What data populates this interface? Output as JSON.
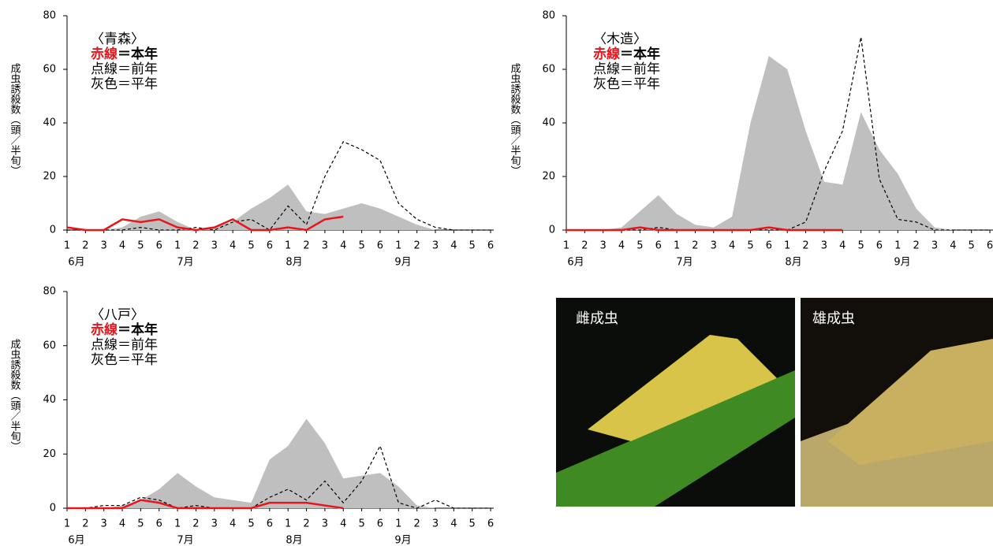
{
  "chart_data": [
    {
      "type": "line",
      "title": "〈青森〉",
      "y_label": "成虫誘殺数（頭／半旬）",
      "categories": [
        "1",
        "2",
        "3",
        "4",
        "5",
        "6",
        "1",
        "2",
        "3",
        "4",
        "5",
        "6",
        "1",
        "2",
        "3",
        "4",
        "5",
        "6",
        "1",
        "2",
        "3",
        "4",
        "5",
        "6"
      ],
      "months": [
        "6月",
        "7月",
        "8月",
        "9月"
      ],
      "ylim": [
        0,
        80
      ],
      "yticks": [
        0,
        20,
        40,
        60,
        80
      ],
      "series": [
        {
          "label": "赤線",
          "name": "＝本年",
          "style": "solid",
          "color": "#e8161b",
          "values": [
            1,
            0,
            0,
            4,
            3,
            4,
            1,
            0,
            1,
            4,
            0,
            0,
            1,
            0,
            4,
            5,
            null,
            null,
            null,
            null,
            null,
            null,
            null,
            null
          ]
        },
        {
          "name": "点線＝前年",
          "style": "dashed",
          "color": "#000000",
          "values": [
            0,
            0,
            0,
            0,
            1,
            0,
            0,
            1,
            0,
            3,
            4,
            0,
            9,
            2,
            20,
            33,
            30,
            26,
            10,
            4,
            1,
            0,
            0,
            0
          ]
        },
        {
          "name": "灰色＝平年",
          "style": "area",
          "color": "#bfbfbf",
          "values": [
            0,
            0,
            0,
            1,
            5,
            7,
            3,
            0,
            1,
            3,
            8,
            12,
            17,
            7,
            6,
            8,
            10,
            8,
            5,
            2,
            0,
            0,
            0,
            0
          ]
        }
      ]
    },
    {
      "type": "line",
      "title": "〈木造〉",
      "y_label": "成虫誘殺数（頭／半旬）",
      "categories": [
        "1",
        "2",
        "3",
        "4",
        "5",
        "6",
        "1",
        "2",
        "3",
        "4",
        "5",
        "6",
        "1",
        "2",
        "3",
        "4",
        "5",
        "6",
        "1",
        "2",
        "3",
        "4",
        "5",
        "6"
      ],
      "months": [
        "6月",
        "7月",
        "8月",
        "9月"
      ],
      "ylim": [
        0,
        80
      ],
      "yticks": [
        0,
        20,
        40,
        60,
        80
      ],
      "series": [
        {
          "label": "赤線",
          "name": "＝本年",
          "style": "solid",
          "color": "#e8161b",
          "values": [
            0,
            0,
            0,
            0,
            1,
            0,
            0,
            0,
            0,
            0,
            0,
            1,
            0,
            0,
            0,
            0,
            null,
            null,
            null,
            null,
            null,
            null,
            null,
            null
          ]
        },
        {
          "name": "点線＝前年",
          "style": "dashed",
          "color": "#000000",
          "values": [
            0,
            0,
            0,
            0,
            0,
            1,
            0,
            0,
            0,
            0,
            0,
            0,
            0,
            3,
            22,
            37,
            72,
            19,
            4,
            3,
            0,
            0,
            0,
            0
          ]
        },
        {
          "name": "灰色＝平年",
          "style": "area",
          "color": "#bfbfbf",
          "values": [
            0,
            0,
            0,
            1,
            7,
            13,
            6,
            2,
            1,
            5,
            40,
            65,
            60,
            37,
            18,
            17,
            44,
            30,
            21,
            8,
            1,
            0,
            0,
            0
          ]
        }
      ]
    },
    {
      "type": "line",
      "title": "〈八戸〉",
      "y_label": "成虫誘殺数（頭／半旬）",
      "categories": [
        "1",
        "2",
        "3",
        "4",
        "5",
        "6",
        "1",
        "2",
        "3",
        "4",
        "5",
        "6",
        "1",
        "2",
        "3",
        "4",
        "5",
        "6",
        "1",
        "2",
        "3",
        "4",
        "5",
        "6"
      ],
      "months": [
        "6月",
        "7月",
        "8月",
        "9月"
      ],
      "ylim": [
        0,
        80
      ],
      "yticks": [
        0,
        20,
        40,
        60,
        80
      ],
      "series": [
        {
          "label": "赤線",
          "name": "＝本年",
          "style": "solid",
          "color": "#e8161b",
          "values": [
            0,
            0,
            0,
            0,
            3,
            2,
            0,
            0,
            0,
            0,
            0,
            2,
            2,
            2,
            1,
            0,
            null,
            null,
            null,
            null,
            null,
            null,
            null,
            null
          ]
        },
        {
          "name": "点線＝前年",
          "style": "dashed",
          "color": "#000000",
          "values": [
            0,
            0,
            1,
            1,
            4,
            3,
            0,
            1,
            0,
            0,
            0,
            4,
            7,
            3,
            10,
            2,
            10,
            23,
            2,
            0,
            3,
            0,
            0,
            0
          ]
        },
        {
          "name": "灰色＝平年",
          "style": "area",
          "color": "#bfbfbf",
          "values": [
            0,
            0,
            0,
            1,
            3,
            7,
            13,
            8,
            4,
            3,
            2,
            18,
            23,
            33,
            24,
            11,
            12,
            13,
            8,
            1,
            0,
            0,
            0,
            0
          ]
        }
      ]
    }
  ],
  "photos": [
    {
      "label": "雌成虫"
    },
    {
      "label": "雄成虫"
    }
  ]
}
